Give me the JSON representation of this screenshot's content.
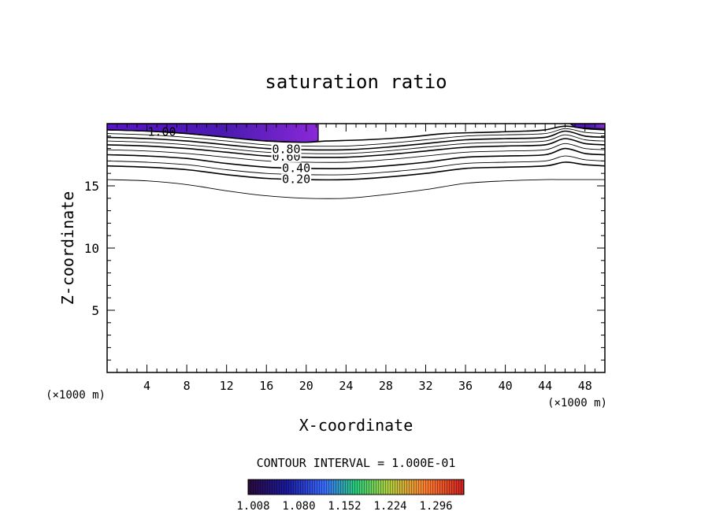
{
  "chart_data": {
    "type": "contour",
    "title": "saturation ratio",
    "xlabel": "X-coordinate",
    "ylabel": "Z-coordinate",
    "x_unit_left": "(×1000 m)",
    "x_unit_right": "(×1000 m)",
    "xlim": [
      0,
      50
    ],
    "ylim": [
      0,
      20
    ],
    "x_ticks": [
      4,
      8,
      12,
      16,
      20,
      24,
      28,
      32,
      36,
      40,
      44,
      48
    ],
    "y_ticks": [
      5,
      10,
      15
    ],
    "contour_interval_text": "CONTOUR INTERVAL = 1.000E-01",
    "contours": [
      {
        "level": 0.1,
        "label": "",
        "points": [
          [
            0,
            15.5
          ],
          [
            4,
            15.4
          ],
          [
            8,
            15.1
          ],
          [
            12,
            14.6
          ],
          [
            16,
            14.2
          ],
          [
            20,
            14.0
          ],
          [
            24,
            14.0
          ],
          [
            28,
            14.3
          ],
          [
            32,
            14.7
          ],
          [
            36,
            15.2
          ],
          [
            40,
            15.4
          ],
          [
            44,
            15.5
          ],
          [
            46,
            15.5
          ],
          [
            50,
            15.5
          ]
        ]
      },
      {
        "level": 0.2,
        "label": "0.20",
        "label_x": 19,
        "points": [
          [
            0,
            16.6
          ],
          [
            4,
            16.5
          ],
          [
            8,
            16.3
          ],
          [
            12,
            15.9
          ],
          [
            16,
            15.6
          ],
          [
            20,
            15.5
          ],
          [
            24,
            15.5
          ],
          [
            28,
            15.7
          ],
          [
            32,
            16.0
          ],
          [
            36,
            16.4
          ],
          [
            40,
            16.5
          ],
          [
            44,
            16.6
          ],
          [
            46,
            16.9
          ],
          [
            48,
            16.7
          ],
          [
            50,
            16.6
          ]
        ]
      },
      {
        "level": 0.3,
        "label": "",
        "points": [
          [
            0,
            17.0
          ],
          [
            4,
            16.9
          ],
          [
            8,
            16.7
          ],
          [
            12,
            16.3
          ],
          [
            16,
            16.0
          ],
          [
            20,
            15.9
          ],
          [
            24,
            15.9
          ],
          [
            28,
            16.1
          ],
          [
            32,
            16.4
          ],
          [
            36,
            16.8
          ],
          [
            40,
            16.9
          ],
          [
            44,
            17.0
          ],
          [
            46,
            17.4
          ],
          [
            48,
            17.1
          ],
          [
            50,
            17.0
          ]
        ]
      },
      {
        "level": 0.4,
        "label": "0.40",
        "label_x": 19,
        "points": [
          [
            0,
            17.5
          ],
          [
            4,
            17.4
          ],
          [
            8,
            17.2
          ],
          [
            12,
            16.8
          ],
          [
            16,
            16.5
          ],
          [
            20,
            16.4
          ],
          [
            24,
            16.4
          ],
          [
            28,
            16.6
          ],
          [
            32,
            16.9
          ],
          [
            36,
            17.3
          ],
          [
            40,
            17.4
          ],
          [
            44,
            17.5
          ],
          [
            46,
            18.0
          ],
          [
            48,
            17.6
          ],
          [
            50,
            17.5
          ]
        ]
      },
      {
        "level": 0.5,
        "label": "",
        "points": [
          [
            0,
            17.9
          ],
          [
            4,
            17.8
          ],
          [
            8,
            17.6
          ],
          [
            12,
            17.3
          ],
          [
            16,
            17.0
          ],
          [
            20,
            16.9
          ],
          [
            24,
            16.9
          ],
          [
            28,
            17.1
          ],
          [
            32,
            17.4
          ],
          [
            36,
            17.7
          ],
          [
            40,
            17.8
          ],
          [
            44,
            17.9
          ],
          [
            46,
            18.4
          ],
          [
            48,
            18.0
          ],
          [
            50,
            17.9
          ]
        ]
      },
      {
        "level": 0.6,
        "label": "0.60",
        "label_x": 18,
        "points": [
          [
            0,
            18.3
          ],
          [
            4,
            18.2
          ],
          [
            8,
            18.0
          ],
          [
            12,
            17.7
          ],
          [
            16,
            17.4
          ],
          [
            20,
            17.3
          ],
          [
            24,
            17.3
          ],
          [
            28,
            17.5
          ],
          [
            32,
            17.8
          ],
          [
            36,
            18.1
          ],
          [
            40,
            18.2
          ],
          [
            44,
            18.3
          ],
          [
            46,
            18.8
          ],
          [
            48,
            18.4
          ],
          [
            50,
            18.3
          ]
        ]
      },
      {
        "level": 0.7,
        "label": "",
        "points": [
          [
            0,
            18.6
          ],
          [
            4,
            18.5
          ],
          [
            8,
            18.3
          ],
          [
            12,
            18.0
          ],
          [
            16,
            17.7
          ],
          [
            20,
            17.6
          ],
          [
            24,
            17.6
          ],
          [
            28,
            17.8
          ],
          [
            32,
            18.1
          ],
          [
            36,
            18.4
          ],
          [
            40,
            18.5
          ],
          [
            44,
            18.6
          ],
          [
            46,
            19.1
          ],
          [
            48,
            18.7
          ],
          [
            50,
            18.6
          ]
        ]
      },
      {
        "level": 0.8,
        "label": "0.80",
        "label_x": 18,
        "points": [
          [
            0,
            18.9
          ],
          [
            4,
            18.8
          ],
          [
            8,
            18.6
          ],
          [
            12,
            18.3
          ],
          [
            16,
            18.0
          ],
          [
            20,
            17.9
          ],
          [
            24,
            17.9
          ],
          [
            28,
            18.1
          ],
          [
            32,
            18.4
          ],
          [
            36,
            18.7
          ],
          [
            40,
            18.8
          ],
          [
            44,
            18.9
          ],
          [
            46,
            19.4
          ],
          [
            48,
            19.0
          ],
          [
            50,
            18.9
          ]
        ]
      },
      {
        "level": 0.9,
        "label": "",
        "points": [
          [
            0,
            19.2
          ],
          [
            4,
            19.1
          ],
          [
            8,
            18.9
          ],
          [
            12,
            18.6
          ],
          [
            16,
            18.3
          ],
          [
            20,
            18.2
          ],
          [
            24,
            18.2
          ],
          [
            28,
            18.4
          ],
          [
            32,
            18.7
          ],
          [
            36,
            19.0
          ],
          [
            40,
            19.1
          ],
          [
            44,
            19.2
          ],
          [
            46,
            19.6
          ],
          [
            48,
            19.3
          ],
          [
            50,
            19.2
          ]
        ]
      },
      {
        "level": 1.0,
        "label": "1.00",
        "label_x": 5.5,
        "points": [
          [
            0,
            19.5
          ],
          [
            4,
            19.4
          ],
          [
            8,
            19.2
          ],
          [
            12,
            18.9
          ],
          [
            16,
            18.6
          ],
          [
            20,
            18.5
          ],
          [
            22,
            18.6
          ],
          [
            26,
            18.7
          ],
          [
            30,
            18.9
          ],
          [
            34,
            19.2
          ],
          [
            38,
            19.3
          ],
          [
            42,
            19.4
          ],
          [
            44,
            19.5
          ],
          [
            46,
            19.8
          ],
          [
            48,
            19.6
          ],
          [
            50,
            19.5
          ]
        ]
      }
    ],
    "filled_regions": [
      {
        "min": 1.008,
        "points": [
          [
            0,
            20
          ],
          [
            21.2,
            20
          ],
          [
            21.2,
            18.6
          ],
          [
            20,
            18.5
          ],
          [
            16,
            18.6
          ],
          [
            12,
            18.9
          ],
          [
            8,
            19.2
          ],
          [
            4,
            19.4
          ],
          [
            0,
            19.5
          ]
        ]
      },
      {
        "min": 1.008,
        "points": [
          [
            46.5,
            20
          ],
          [
            50,
            20
          ],
          [
            50,
            19.6
          ],
          [
            49,
            19.6
          ],
          [
            47,
            19.7
          ]
        ]
      }
    ],
    "colorbar": {
      "min": 1.0,
      "max": 1.34,
      "tick_values": [
        1.008,
        1.08,
        1.152,
        1.224,
        1.296
      ],
      "tick_labels": [
        "1.008",
        "1.080",
        "1.152",
        "1.224",
        "1.296"
      ],
      "colors": [
        "#2a0a3a",
        "#1a1aa0",
        "#3a6aff",
        "#2acc7a",
        "#b0d040",
        "#ff8030",
        "#d02020"
      ]
    },
    "grid": false
  }
}
